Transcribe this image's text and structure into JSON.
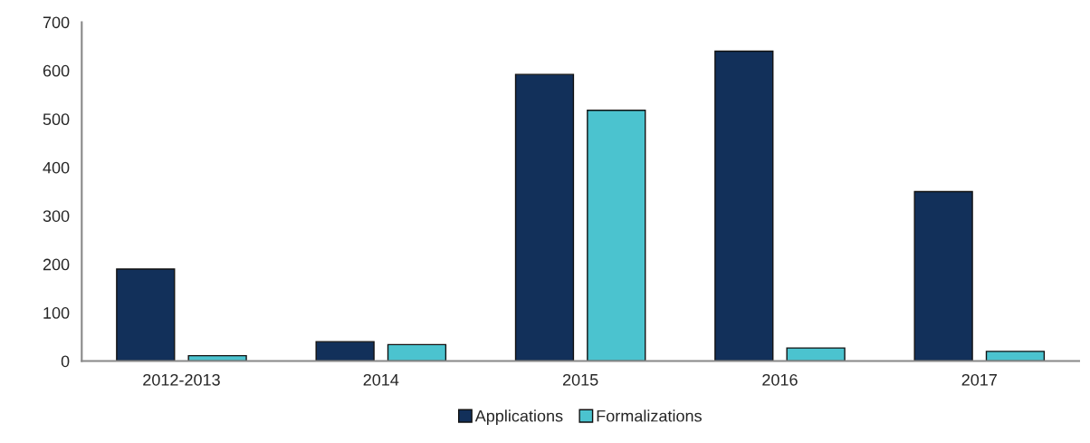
{
  "chart_data": {
    "type": "bar",
    "categories": [
      "2012-2013",
      "2014",
      "2015",
      "2016",
      "2017"
    ],
    "series": [
      {
        "name": "Applications",
        "color": "#12305a",
        "values": [
          190,
          40,
          592,
          640,
          350
        ]
      },
      {
        "name": "Formalizations",
        "color": "#4bc3cf",
        "values": [
          11,
          34,
          518,
          27,
          20
        ]
      }
    ],
    "ylim": [
      0,
      700
    ],
    "yticks": [
      0,
      100,
      200,
      300,
      400,
      500,
      600,
      700
    ],
    "grid": false,
    "legend": "bottom"
  }
}
